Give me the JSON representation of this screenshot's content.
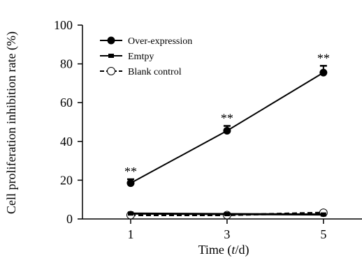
{
  "chart_data": {
    "type": "line",
    "xlabel": {
      "prefix": "Time (",
      "italic": "t",
      "suffix": "/d)"
    },
    "ylabel": "Cell proliferation inhibition rate (%)",
    "x": [
      1,
      3,
      5
    ],
    "xlim": [
      0,
      5.8
    ],
    "ylim": [
      0,
      100
    ],
    "yticks": [
      0,
      20,
      40,
      60,
      80,
      100
    ],
    "grid": false,
    "legend_position": "top-left",
    "series": [
      {
        "name": "Over-expression",
        "values": [
          18.5,
          45.5,
          75.5
        ],
        "errors": [
          2.0,
          2.5,
          3.5
        ],
        "marker": "filled-circle",
        "line": "solid",
        "significance": [
          "**",
          "**",
          "**"
        ]
      },
      {
        "name": "Emtpy",
        "values": [
          2.8,
          2.5,
          2.3
        ],
        "marker": "filled-square",
        "line": "solid"
      },
      {
        "name": "Blank control",
        "values": [
          2.0,
          2.0,
          3.2
        ],
        "marker": "open-circle",
        "line": "dashed"
      }
    ]
  }
}
